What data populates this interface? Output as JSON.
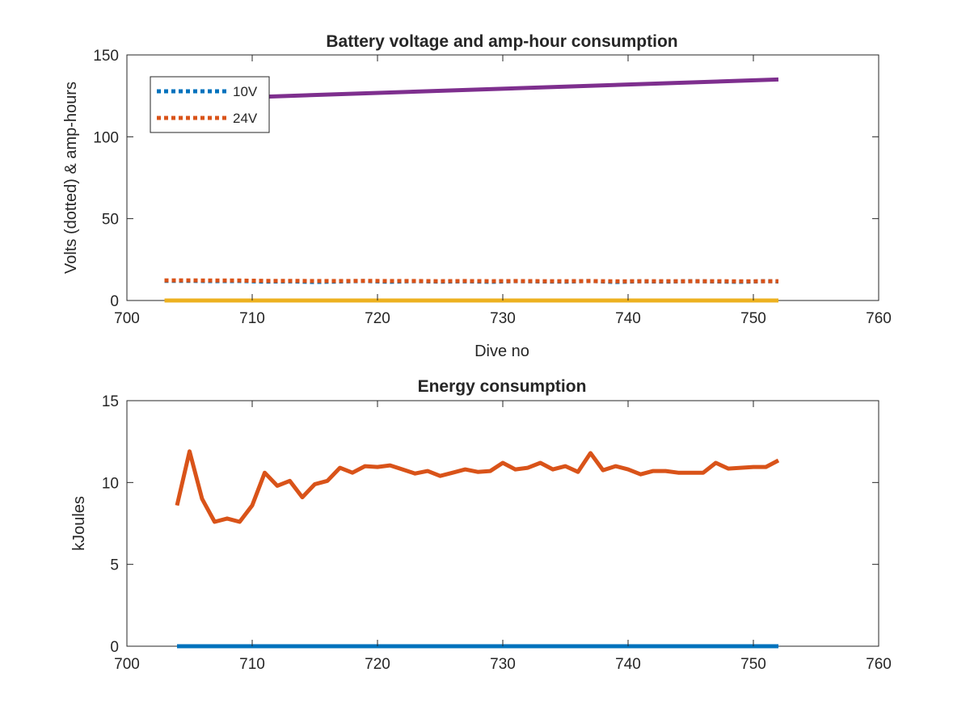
{
  "chart_data": [
    {
      "type": "line",
      "title": "Battery voltage and amp-hour consumption",
      "xlabel": "Dive no",
      "ylabel": "Volts (dotted) & amp-hours",
      "xlim": [
        700,
        760
      ],
      "ylim": [
        0,
        150
      ],
      "xticks": [
        700,
        710,
        720,
        730,
        740,
        750,
        760
      ],
      "yticks": [
        0,
        50,
        100,
        150
      ],
      "legend_position": "top-left",
      "grid": false,
      "series": [
        {
          "name": "10V",
          "style": "dotted",
          "color": "#0072BD",
          "x": [
            703,
            705,
            707,
            709,
            711,
            713,
            715,
            717,
            719,
            721,
            723,
            725,
            727,
            729,
            731,
            733,
            735,
            737,
            739,
            741,
            743,
            745,
            747,
            749,
            751,
            752
          ],
          "y": [
            12,
            12,
            11.8,
            11.9,
            11.5,
            11.7,
            11.3,
            11.6,
            11.9,
            11.4,
            11.8,
            11.5,
            11.7,
            11.4,
            11.8,
            11.6,
            11.5,
            11.9,
            11.3,
            11.7,
            11.5,
            11.8,
            11.6,
            11.4,
            11.8,
            11.6
          ]
        },
        {
          "name": "24V",
          "style": "dotted",
          "color": "#D95319",
          "x": [
            703,
            705,
            707,
            709,
            711,
            713,
            715,
            717,
            719,
            721,
            723,
            725,
            727,
            729,
            731,
            733,
            735,
            737,
            739,
            741,
            743,
            745,
            747,
            749,
            751,
            752
          ],
          "y": [
            12.3,
            12.3,
            12.2,
            12.2,
            12,
            12,
            11.9,
            11.9,
            12,
            11.9,
            11.9,
            11.8,
            11.9,
            11.8,
            11.9,
            11.8,
            11.8,
            11.9,
            11.7,
            11.8,
            11.8,
            11.8,
            11.8,
            11.7,
            11.8,
            11.8
          ]
        },
        {
          "style": "solid",
          "color": "#7E2F8E",
          "x": [
            711,
            752
          ],
          "y": [
            124.5,
            135
          ]
        },
        {
          "style": "solid",
          "color": "#EDB120",
          "x": [
            703,
            752
          ],
          "y": [
            0,
            0
          ]
        }
      ]
    },
    {
      "type": "line",
      "title": "Energy consumption",
      "xlabel": "",
      "ylabel": "kJoules",
      "xlim": [
        700,
        760
      ],
      "ylim": [
        0,
        15
      ],
      "xticks": [
        700,
        710,
        720,
        730,
        740,
        750,
        760
      ],
      "yticks": [
        0,
        5,
        10,
        15
      ],
      "grid": false,
      "series": [
        {
          "style": "solid",
          "color": "#D95319",
          "x": [
            704,
            705,
            706,
            707,
            708,
            709,
            710,
            711,
            712,
            713,
            714,
            715,
            716,
            717,
            718,
            719,
            720,
            721,
            722,
            723,
            724,
            725,
            726,
            727,
            728,
            729,
            730,
            731,
            732,
            733,
            734,
            735,
            736,
            737,
            738,
            739,
            740,
            741,
            742,
            743,
            744,
            745,
            746,
            747,
            748,
            749,
            750,
            751,
            752
          ],
          "y": [
            8.6,
            11.9,
            9.0,
            7.6,
            7.8,
            7.6,
            8.6,
            10.6,
            9.8,
            10.1,
            9.1,
            9.9,
            10.1,
            10.9,
            10.6,
            11.0,
            10.95,
            11.05,
            10.8,
            10.55,
            10.7,
            10.4,
            10.6,
            10.8,
            10.65,
            10.7,
            11.2,
            10.8,
            10.9,
            11.2,
            10.8,
            11.0,
            10.65,
            11.8,
            10.75,
            11.0,
            10.8,
            10.5,
            10.7,
            10.7,
            10.6,
            10.6,
            10.6,
            11.2,
            10.85,
            10.9,
            10.95,
            10.95,
            11.35
          ]
        },
        {
          "style": "solid",
          "color": "#0072BD",
          "x": [
            704,
            752
          ],
          "y": [
            0,
            0
          ]
        }
      ]
    }
  ]
}
